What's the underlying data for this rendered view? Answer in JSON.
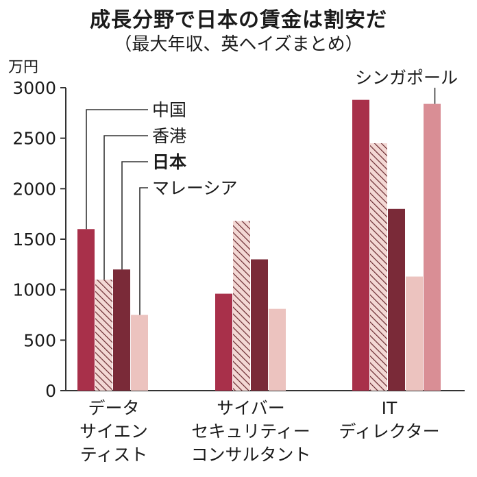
{
  "chart_data": {
    "type": "bar",
    "title": "成長分野で日本の賃金は割安だ",
    "subtitle": "（最大年収、英ヘイズまとめ）",
    "ylabel": "万円",
    "ylim": [
      0,
      3000
    ],
    "yticks": [
      0,
      500,
      1000,
      1500,
      2000,
      2500,
      3000
    ],
    "categories": [
      [
        "データ",
        "サイエン",
        "ティスト"
      ],
      [
        "サイバー",
        "セキュリティー",
        "コンサルタント"
      ],
      [
        "IT",
        "ディレクター"
      ]
    ],
    "series": [
      {
        "name": "中国",
        "values": [
          1600,
          960,
          2880
        ],
        "color": "#a8304a",
        "pattern": "solid"
      },
      {
        "name": "香港",
        "values": [
          1100,
          1680,
          2450
        ],
        "color": "#f3d8d4",
        "pattern": "hatch"
      },
      {
        "name": "日本",
        "values": [
          1200,
          1300,
          1800
        ],
        "color": "#7a2a38",
        "pattern": "solid",
        "bold": true
      },
      {
        "name": "マレーシア",
        "values": [
          750,
          810,
          1130
        ],
        "color": "#ecc3bf",
        "pattern": "solid"
      },
      {
        "name": "シンガポール",
        "values": [
          null,
          null,
          2840
        ],
        "color": "#d98e95",
        "pattern": "solid"
      }
    ]
  }
}
